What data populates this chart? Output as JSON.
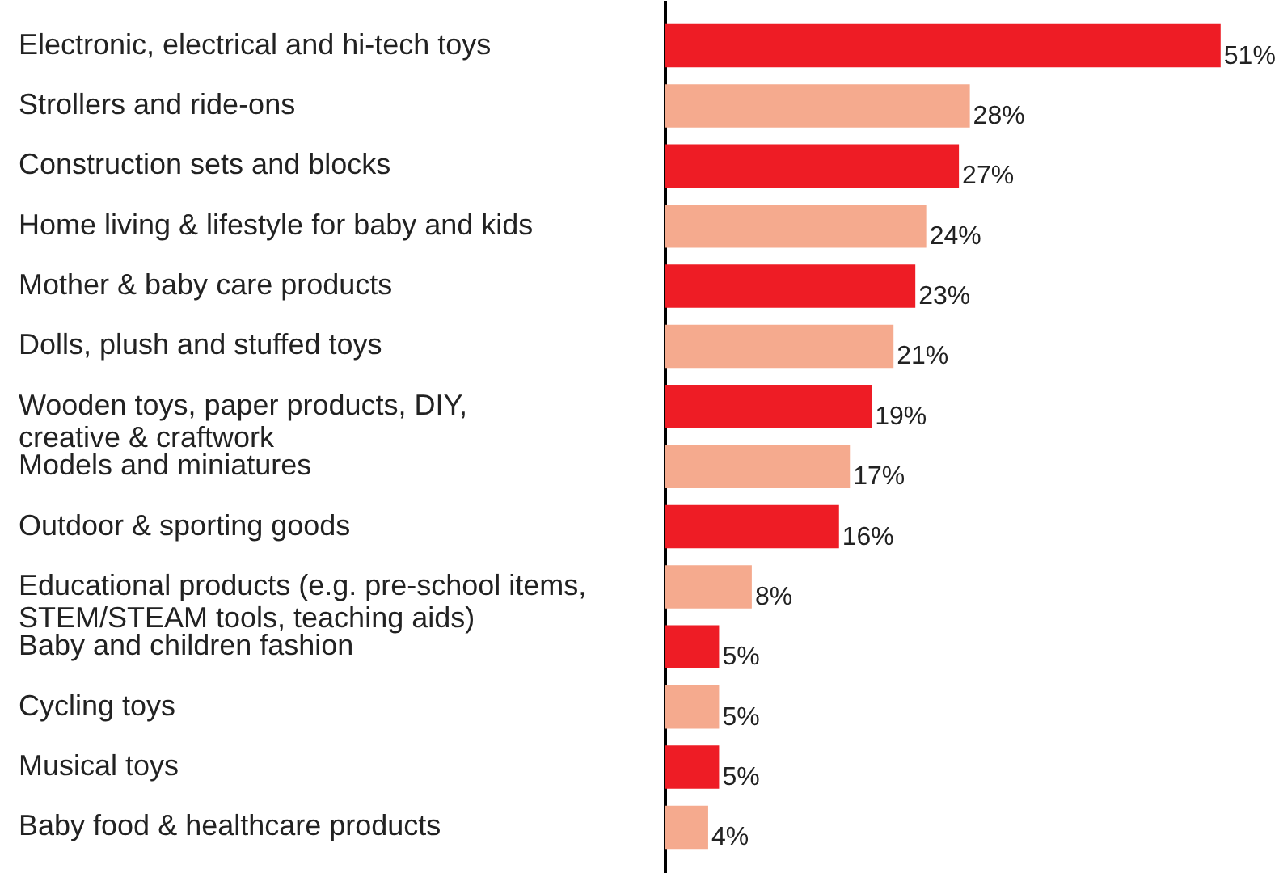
{
  "chart_data": {
    "type": "bar",
    "orientation": "horizontal",
    "categories": [
      "Electronic, electrical and hi-tech toys",
      "Strollers and ride-ons",
      "Construction sets and blocks",
      "Home living & lifestyle for baby and kids",
      "Mother & baby care products",
      "Dolls, plush and stuffed toys",
      "Wooden toys, paper products, DIY,\ncreative & craftwork",
      "Models and miniatures",
      "Outdoor & sporting goods",
      "Educational products (e.g. pre-school items,\nSTEM/STEAM tools, teaching aids)",
      "Baby and children fashion",
      "Cycling toys",
      "Musical toys",
      "Baby food & healthcare products"
    ],
    "values": [
      51,
      28,
      27,
      24,
      23,
      21,
      19,
      17,
      16,
      8,
      5,
      5,
      5,
      4
    ],
    "colors": [
      "#ee1c25",
      "#f5aa8e",
      "#ee1c25",
      "#f5aa8e",
      "#ee1c25",
      "#f5aa8e",
      "#ee1c25",
      "#f5aa8e",
      "#ee1c25",
      "#f5aa8e",
      "#ee1c25",
      "#f5aa8e",
      "#ee1c25",
      "#f5aa8e"
    ],
    "value_labels": [
      "51%",
      "28%",
      "27%",
      "24%",
      "23%",
      "21%",
      "19%",
      "17%",
      "16%",
      "8%",
      "5%",
      "5%",
      "5%",
      "4%"
    ],
    "grid": false
  }
}
